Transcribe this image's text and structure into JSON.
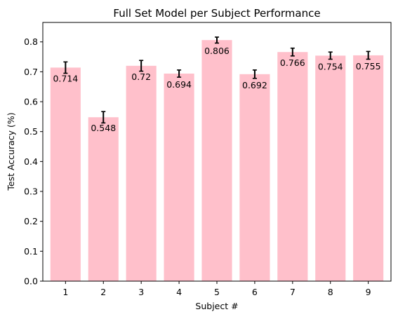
{
  "chart_data": {
    "type": "bar",
    "title": "Full Set Model per Subject Performance",
    "xlabel": "Subject #",
    "ylabel": "Test Accuracy (%)",
    "categories": [
      "1",
      "2",
      "3",
      "4",
      "5",
      "6",
      "7",
      "8",
      "9"
    ],
    "values": [
      0.714,
      0.548,
      0.72,
      0.694,
      0.806,
      0.692,
      0.766,
      0.754,
      0.755
    ],
    "value_labels": [
      "0.714",
      "0.548",
      "0.72",
      "0.694",
      "0.806",
      "0.692",
      "0.766",
      "0.754",
      "0.755"
    ],
    "error": [
      0.019,
      0.019,
      0.018,
      0.012,
      0.01,
      0.014,
      0.013,
      0.012,
      0.013
    ],
    "ylim": [
      0,
      0.865
    ],
    "yticks": [
      0.0,
      0.1,
      0.2,
      0.3,
      0.4,
      0.5,
      0.6,
      0.7,
      0.8
    ],
    "ytick_labels": [
      "0.0",
      "0.1",
      "0.2",
      "0.3",
      "0.4",
      "0.5",
      "0.6",
      "0.7",
      "0.8"
    ],
    "bar_color": "#ffc0cb",
    "error_color": "#000000",
    "grid": false,
    "legend": "none"
  }
}
